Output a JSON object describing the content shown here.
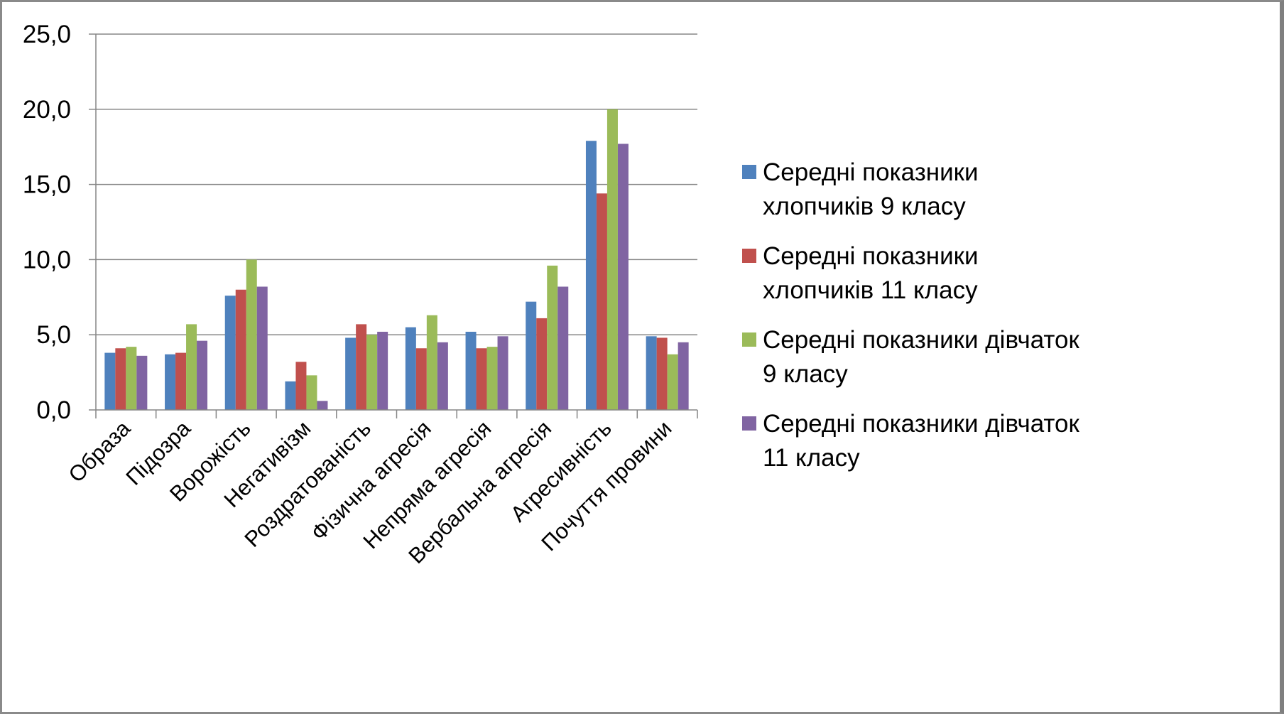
{
  "chart_data": {
    "type": "bar",
    "categories": [
      "Образа",
      "Підозра",
      "Ворожість",
      "Негативізм",
      "Роздратованість",
      "Фізична агресія",
      "Непряма агресія",
      "Вербальна агресія",
      "Агресивність",
      "Почуття провини"
    ],
    "series": [
      {
        "name": "Середні показники хлопчиків 9 класу",
        "legend_lines": [
          "Середні показники",
          "хлопчиків 9 класу"
        ],
        "color": "#4F81BD",
        "values": [
          3.8,
          3.7,
          7.6,
          1.9,
          4.8,
          5.5,
          5.2,
          7.2,
          17.9,
          4.9
        ]
      },
      {
        "name": "Середні показники хлопчиків 11 класу",
        "legend_lines": [
          "Середні показники",
          "хлопчиків 11 класу"
        ],
        "color": "#C0504D",
        "values": [
          4.1,
          3.8,
          8.0,
          3.2,
          5.7,
          4.1,
          4.1,
          6.1,
          14.4,
          4.8
        ]
      },
      {
        "name": "Середні показники дівчаток 9 класу",
        "legend_lines": [
          "Середні показники дівчаток",
          "9 класу"
        ],
        "color": "#9BBB59",
        "values": [
          4.2,
          5.7,
          10.0,
          2.3,
          5.0,
          6.3,
          4.2,
          9.6,
          20.0,
          3.7
        ]
      },
      {
        "name": "Середні показники дівчаток 11 класу",
        "legend_lines": [
          "Середні показники дівчаток",
          "11 класу"
        ],
        "color": "#8064A2",
        "values": [
          3.6,
          4.6,
          8.2,
          0.6,
          5.2,
          4.5,
          4.9,
          8.2,
          17.7,
          4.5
        ]
      }
    ],
    "yticks": [
      "0,0",
      "5,0",
      "10,0",
      "15,0",
      "20,0",
      "25,0"
    ],
    "ylim": [
      0,
      25
    ],
    "grid": true,
    "legend_position": "right"
  }
}
